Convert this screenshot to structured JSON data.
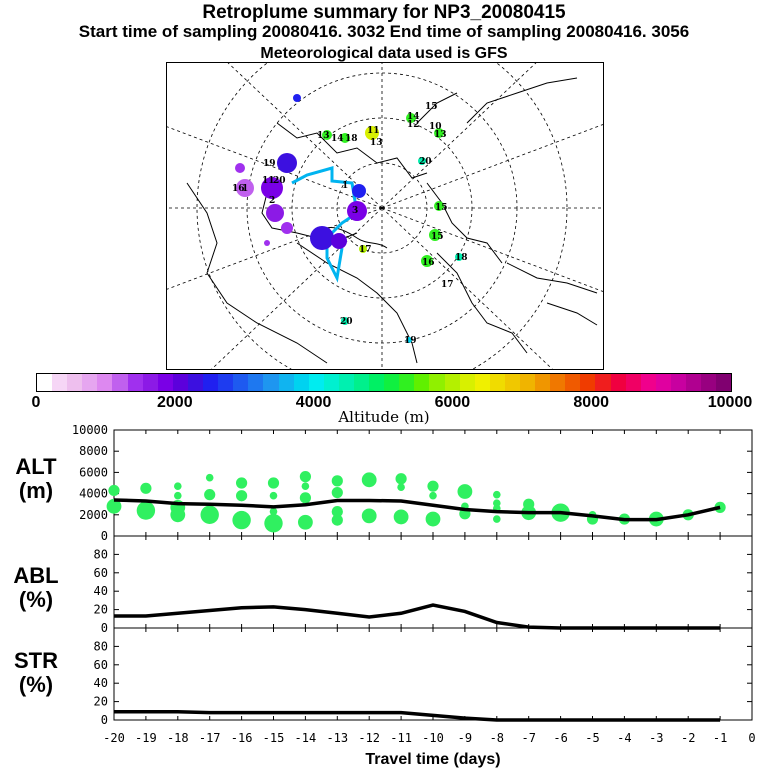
{
  "header": {
    "title": "Retroplume summary for NP3_20080415",
    "sampling": "Start time of sampling 20080416.  3032     End time of sampling 20080416.  3056",
    "met": "Meteorological data used is GFS"
  },
  "colorbar": {
    "title": "Altitude (m)",
    "ticks": [
      "0",
      "2000",
      "4000",
      "6000",
      "8000",
      "10000"
    ],
    "colors": [
      "#ffffff",
      "#f6d6f6",
      "#eebfee",
      "#e6a6f0",
      "#dd88f0",
      "#c060ee",
      "#a030ee",
      "#8c1ae6",
      "#7a00e6",
      "#5c00dc",
      "#3c10e0",
      "#2020f0",
      "#1e3cf0",
      "#1e5af0",
      "#1e78f0",
      "#1e96f0",
      "#10b4f0",
      "#00d2f0",
      "#00ecf0",
      "#00f0d0",
      "#00f0b0",
      "#00f08c",
      "#00f064",
      "#10f040",
      "#30f020",
      "#60f000",
      "#90f000",
      "#b4f000",
      "#d8f000",
      "#f0f000",
      "#f0dc00",
      "#f0c800",
      "#f0b400",
      "#f09600",
      "#f07800",
      "#f05a00",
      "#f03c00",
      "#f01e1e",
      "#f00040",
      "#f00064",
      "#f0008c",
      "#e000a0",
      "#c800a0",
      "#b00090",
      "#980080",
      "#800070"
    ]
  },
  "map": {
    "labels": [
      {
        "t": "19",
        "c": "#1e5af0"
      },
      {
        "t": "11",
        "c": "#1e5af0"
      },
      {
        "t": "20",
        "c": "#1e78f0"
      },
      {
        "t": "1",
        "c": "#1e3cf0"
      },
      {
        "t": "2",
        "c": "#7a00e6"
      },
      {
        "t": "3",
        "c": "#a030ee"
      },
      {
        "t": "1",
        "c": "#c060ee"
      },
      {
        "t": "16",
        "c": "#8c1ae6"
      },
      {
        "t": "13",
        "c": "#30f020"
      },
      {
        "t": "14",
        "c": "#30f020"
      },
      {
        "t": "18",
        "c": "#30f020"
      },
      {
        "t": "11",
        "c": "#d8f000"
      },
      {
        "t": "13",
        "c": "#d8f000"
      },
      {
        "t": "14",
        "c": "#30f020"
      },
      {
        "t": "12",
        "c": "#b4f000"
      },
      {
        "t": "15",
        "c": "#00f0b0"
      },
      {
        "t": "13",
        "c": "#30f020"
      },
      {
        "t": "10",
        "c": "#00f0b0"
      },
      {
        "t": "15",
        "c": "#30f020"
      },
      {
        "t": "15",
        "c": "#30f020"
      },
      {
        "t": "16",
        "c": "#30f020"
      },
      {
        "t": "18",
        "c": "#00f0b0"
      },
      {
        "t": "17",
        "c": "#00ecf0"
      },
      {
        "t": "20",
        "c": "#00f0b0"
      },
      {
        "t": "19",
        "c": "#00d2f0"
      },
      {
        "t": "17",
        "c": "#b4f000"
      },
      {
        "t": "20",
        "c": "#30f020"
      }
    ]
  },
  "chart_data": [
    {
      "type": "scatter+line",
      "ylabel": "ALT\n(m)",
      "ylim": [
        0,
        10000
      ],
      "yticks": [
        0,
        2000,
        4000,
        6000,
        8000,
        10000
      ],
      "xlim": [
        -20,
        0
      ],
      "line": {
        "x": [
          -20,
          -19,
          -18,
          -17,
          -16,
          -15,
          -14,
          -13,
          -12,
          -11,
          -10,
          -9,
          -8,
          -7,
          -6,
          -5,
          -4,
          -3,
          -2,
          -1
        ],
        "y": [
          3400,
          3300,
          3050,
          3000,
          2900,
          2750,
          2950,
          3350,
          3350,
          3300,
          2900,
          2500,
          2300,
          2200,
          2200,
          1900,
          1550,
          1550,
          2000,
          2700
        ]
      },
      "points": [
        {
          "x": -20,
          "y": 2800,
          "r": 3
        },
        {
          "x": -20,
          "y": 4300,
          "r": 2
        },
        {
          "x": -19,
          "y": 2400,
          "r": 4
        },
        {
          "x": -19,
          "y": 4500,
          "r": 2
        },
        {
          "x": -18,
          "y": 2000,
          "r": 3
        },
        {
          "x": -18,
          "y": 2700,
          "r": 3
        },
        {
          "x": -18,
          "y": 3800,
          "r": 1
        },
        {
          "x": -18,
          "y": 4700,
          "r": 1
        },
        {
          "x": -17,
          "y": 2000,
          "r": 4
        },
        {
          "x": -17,
          "y": 3900,
          "r": 2
        },
        {
          "x": -17,
          "y": 5500,
          "r": 1
        },
        {
          "x": -16,
          "y": 1500,
          "r": 4
        },
        {
          "x": -16,
          "y": 3800,
          "r": 2
        },
        {
          "x": -16,
          "y": 5000,
          "r": 2
        },
        {
          "x": -15,
          "y": 1200,
          "r": 4
        },
        {
          "x": -15,
          "y": 2300,
          "r": 1
        },
        {
          "x": -15,
          "y": 3800,
          "r": 1
        },
        {
          "x": -15,
          "y": 5000,
          "r": 2
        },
        {
          "x": -14,
          "y": 1300,
          "r": 3
        },
        {
          "x": -14,
          "y": 3600,
          "r": 2
        },
        {
          "x": -14,
          "y": 4700,
          "r": 1
        },
        {
          "x": -14,
          "y": 5600,
          "r": 2
        },
        {
          "x": -13,
          "y": 1500,
          "r": 2
        },
        {
          "x": -13,
          "y": 2300,
          "r": 2
        },
        {
          "x": -13,
          "y": 4100,
          "r": 2
        },
        {
          "x": -13,
          "y": 5200,
          "r": 2
        },
        {
          "x": -12,
          "y": 1900,
          "r": 3
        },
        {
          "x": -12,
          "y": 5300,
          "r": 3
        },
        {
          "x": -11,
          "y": 1800,
          "r": 3
        },
        {
          "x": -11,
          "y": 5400,
          "r": 2
        },
        {
          "x": -11,
          "y": 4600,
          "r": 1
        },
        {
          "x": -10,
          "y": 1600,
          "r": 3
        },
        {
          "x": -10,
          "y": 3800,
          "r": 1
        },
        {
          "x": -10,
          "y": 4700,
          "r": 2
        },
        {
          "x": -9,
          "y": 2100,
          "r": 2
        },
        {
          "x": -9,
          "y": 2800,
          "r": 1
        },
        {
          "x": -9,
          "y": 4200,
          "r": 3
        },
        {
          "x": -8,
          "y": 1600,
          "r": 1
        },
        {
          "x": -8,
          "y": 2600,
          "r": 1
        },
        {
          "x": -8,
          "y": 3100,
          "r": 1
        },
        {
          "x": -8,
          "y": 3900,
          "r": 1
        },
        {
          "x": -7,
          "y": 2200,
          "r": 3
        },
        {
          "x": -7,
          "y": 3000,
          "r": 2
        },
        {
          "x": -6,
          "y": 2200,
          "r": 4
        },
        {
          "x": -5,
          "y": 1600,
          "r": 2
        },
        {
          "x": -5,
          "y": 2000,
          "r": 1
        },
        {
          "x": -4,
          "y": 1600,
          "r": 2
        },
        {
          "x": -3,
          "y": 1600,
          "r": 3
        },
        {
          "x": -2,
          "y": 2000,
          "r": 2
        },
        {
          "x": -1,
          "y": 2700,
          "r": 2
        }
      ]
    },
    {
      "type": "line",
      "ylabel": "ABL\n(%)",
      "ylim": [
        0,
        100
      ],
      "yticks": [
        0,
        20,
        40,
        60,
        80
      ],
      "xlim": [
        -20,
        0
      ],
      "x": [
        -20,
        -19,
        -18,
        -17,
        -16,
        -15,
        -14,
        -13,
        -12,
        -11,
        -10,
        -9,
        -8,
        -7,
        -6,
        -5,
        -4,
        -3,
        -2,
        -1
      ],
      "y": [
        13,
        13,
        16,
        19,
        22,
        23,
        20,
        16,
        12,
        16,
        25,
        18,
        6,
        1,
        0,
        0,
        0,
        0,
        0,
        0
      ]
    },
    {
      "type": "line",
      "ylabel": "STR\n(%)",
      "ylim": [
        0,
        100
      ],
      "yticks": [
        0,
        20,
        40,
        60,
        80
      ],
      "xlim": [
        -20,
        0
      ],
      "xticks": [
        -20,
        -19,
        -18,
        -17,
        -16,
        -15,
        -14,
        -13,
        -12,
        -11,
        -10,
        -9,
        -8,
        -7,
        -6,
        -5,
        -4,
        -3,
        -2,
        -1,
        0
      ],
      "xlabel": "Travel time (days)",
      "x": [
        -20,
        -19,
        -18,
        -17,
        -16,
        -15,
        -14,
        -13,
        -12,
        -11,
        -10,
        -9,
        -8,
        -7,
        -6,
        -5,
        -4,
        -3,
        -2,
        -1
      ],
      "y": [
        9,
        9,
        9,
        8,
        8,
        8,
        8,
        8,
        8,
        8,
        5,
        2,
        0,
        0,
        0,
        0,
        0,
        0,
        0,
        0
      ]
    }
  ]
}
